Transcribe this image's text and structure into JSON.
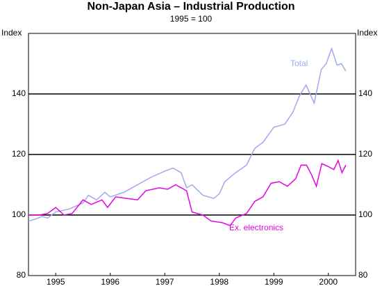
{
  "chart_data": {
    "type": "line",
    "title": "Non-Japan Asia – Industrial Production",
    "subtitle": "1995 = 100",
    "ylabel": "Index",
    "y2label": "Index",
    "xlim": [
      1995,
      2001
    ],
    "xticks": [
      {
        "value": 1995.5,
        "label": "1995"
      },
      {
        "value": 1996.5,
        "label": "1996"
      },
      {
        "value": 1997.5,
        "label": "1997"
      },
      {
        "value": 1998.5,
        "label": "1998"
      },
      {
        "value": 1999.5,
        "label": "1999"
      },
      {
        "value": 2000.5,
        "label": "2000"
      }
    ],
    "ylim": [
      80,
      160
    ],
    "yticks": [
      80,
      100,
      120,
      140
    ],
    "y2lim": [
      80,
      160
    ],
    "y2ticks": [
      80,
      100,
      120,
      140
    ],
    "grid": true,
    "series": [
      {
        "name": "Total",
        "color": "#9fa8ee",
        "x": [
          1995.0,
          1995.1,
          1995.25,
          1995.35,
          1995.5,
          1995.75,
          1996.0,
          1996.1,
          1996.25,
          1996.4,
          1996.5,
          1996.75,
          1997.0,
          1997.25,
          1997.5,
          1997.65,
          1997.8,
          1997.9,
          1998.0,
          1998.2,
          1998.4,
          1998.5,
          1998.6,
          1998.8,
          1999.0,
          1999.15,
          1999.3,
          1999.5,
          1999.7,
          1999.85,
          1999.96,
          2000.09,
          2000.24,
          2000.37,
          2000.46,
          2000.56,
          2000.66,
          2000.74,
          2000.82
        ],
        "values": [
          98,
          98.5,
          99.5,
          99,
          101,
          102,
          104,
          106.5,
          105,
          107.5,
          106,
          107.5,
          110,
          112.5,
          114.5,
          115.5,
          114,
          109,
          110,
          106.5,
          105.5,
          107,
          111,
          114,
          116.5,
          122,
          124,
          129,
          130,
          134,
          139,
          143,
          137,
          148,
          150,
          155,
          149.5,
          150,
          147.5
        ]
      },
      {
        "name": "Ex. electronics",
        "color": "#e600e6",
        "x": [
          1995.0,
          1995.2,
          1995.35,
          1995.5,
          1995.65,
          1995.8,
          1996.0,
          1996.15,
          1996.35,
          1996.45,
          1996.6,
          1996.8,
          1997.0,
          1997.15,
          1997.4,
          1997.55,
          1997.7,
          1997.9,
          1998.0,
          1998.2,
          1998.35,
          1998.55,
          1998.7,
          1998.8,
          1999.0,
          1999.15,
          1999.3,
          1999.45,
          1999.6,
          1999.75,
          1999.9,
          2000.0,
          2000.1,
          2000.2,
          2000.28,
          2000.38,
          2000.5,
          2000.6,
          2000.68,
          2000.75,
          2000.82
        ],
        "values": [
          100,
          100,
          100.5,
          102.5,
          100,
          100.5,
          105,
          103.5,
          105,
          102.5,
          106,
          105.5,
          105,
          108,
          109,
          108.5,
          110,
          108,
          101,
          100,
          98,
          97.5,
          96.5,
          99,
          100.5,
          104.5,
          106,
          110.5,
          111,
          109.5,
          112,
          116.5,
          116.5,
          113,
          109.5,
          117,
          116,
          115,
          118,
          114,
          116.5
        ]
      }
    ]
  }
}
